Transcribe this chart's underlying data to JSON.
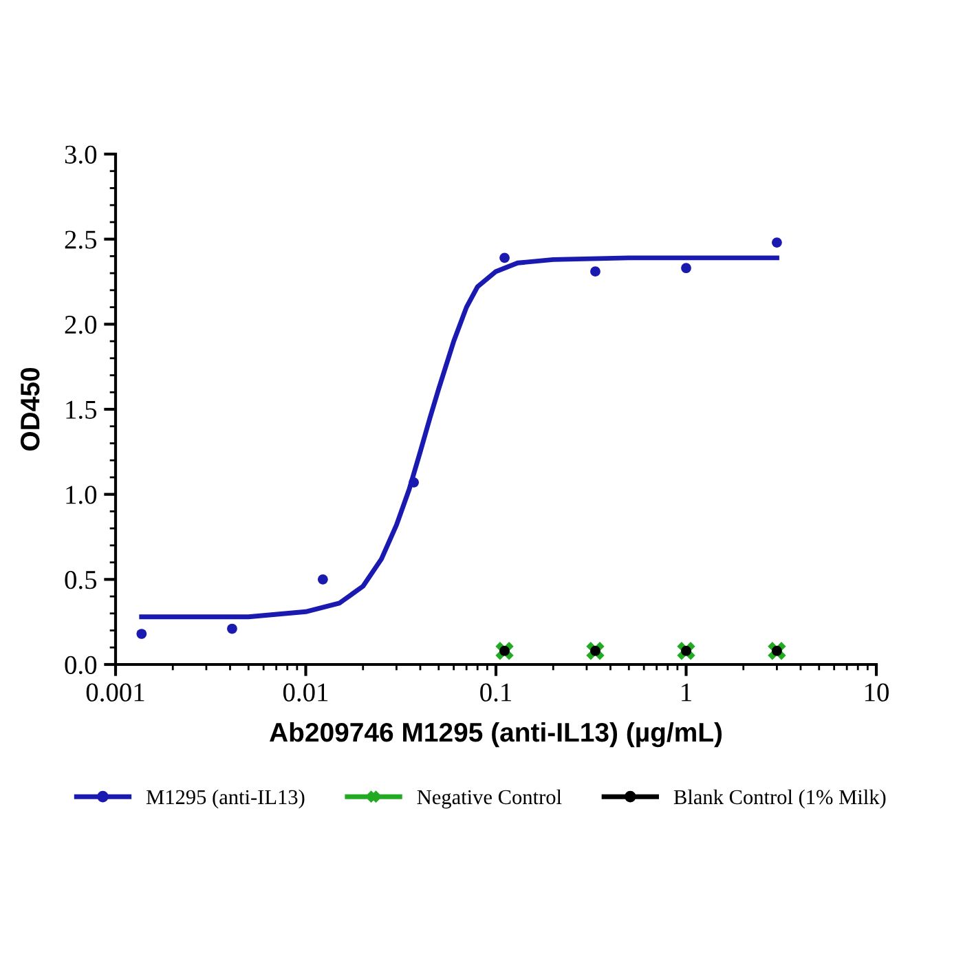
{
  "chart_data": {
    "type": "scatter",
    "xlabel": "Ab209746 M1295 (anti-IL13) (µg/mL)",
    "ylabel": "OD450",
    "log": "x",
    "xlim": [
      0.001,
      10
    ],
    "xticks": [
      {
        "value": 0.001,
        "label": "0.001"
      },
      {
        "value": 0.01,
        "label": "0.01"
      },
      {
        "value": 0.1,
        "label": "0.1"
      },
      {
        "value": 1,
        "label": "1"
      },
      {
        "value": 10,
        "label": "10"
      }
    ],
    "ylim": [
      0,
      3
    ],
    "yticks": [
      {
        "value": 0,
        "label": "0.0"
      },
      {
        "value": 0.5,
        "label": "0.5"
      },
      {
        "value": 1,
        "label": "1.0"
      },
      {
        "value": 1.5,
        "label": "1.5"
      },
      {
        "value": 2,
        "label": "2.0"
      },
      {
        "value": 2.5,
        "label": "2.5"
      },
      {
        "value": 3,
        "label": "3.0"
      }
    ],
    "grid": false,
    "legend": "bottom",
    "series": [
      {
        "name": "M1295 (anti-IL13)",
        "marker": "circle",
        "color": "#1a1ab0",
        "x": [
          0.00137,
          0.0041,
          0.0123,
          0.037,
          0.111,
          0.333,
          1,
          3
        ],
        "values": [
          0.18,
          0.21,
          0.5,
          1.07,
          2.39,
          2.31,
          2.33,
          2.48
        ]
      },
      {
        "type": "line",
        "marker": "none",
        "color": "#1a1ab0",
        "x": [
          0.00137,
          0.005,
          0.01,
          0.015,
          0.02,
          0.025,
          0.03,
          0.035,
          0.04,
          0.045,
          0.05,
          0.06,
          0.07,
          0.08,
          0.1,
          0.13,
          0.2,
          0.5,
          3
        ],
        "values": [
          0.28,
          0.28,
          0.31,
          0.36,
          0.46,
          0.62,
          0.82,
          1.03,
          1.25,
          1.45,
          1.62,
          1.9,
          2.1,
          2.22,
          2.31,
          2.36,
          2.38,
          2.39,
          2.39
        ]
      },
      {
        "name": "Negative Control",
        "marker": "cross",
        "color": "#22aa22",
        "x": [
          0.111,
          0.333,
          1,
          3
        ],
        "values": [
          0.08,
          0.08,
          0.08,
          0.08
        ]
      },
      {
        "name": "Blank Control (1% Milk)",
        "marker": "circle",
        "color": "#000000",
        "x": [
          0.111,
          0.333,
          1,
          3
        ],
        "values": [
          0.08,
          0.08,
          0.08,
          0.08
        ]
      }
    ]
  }
}
